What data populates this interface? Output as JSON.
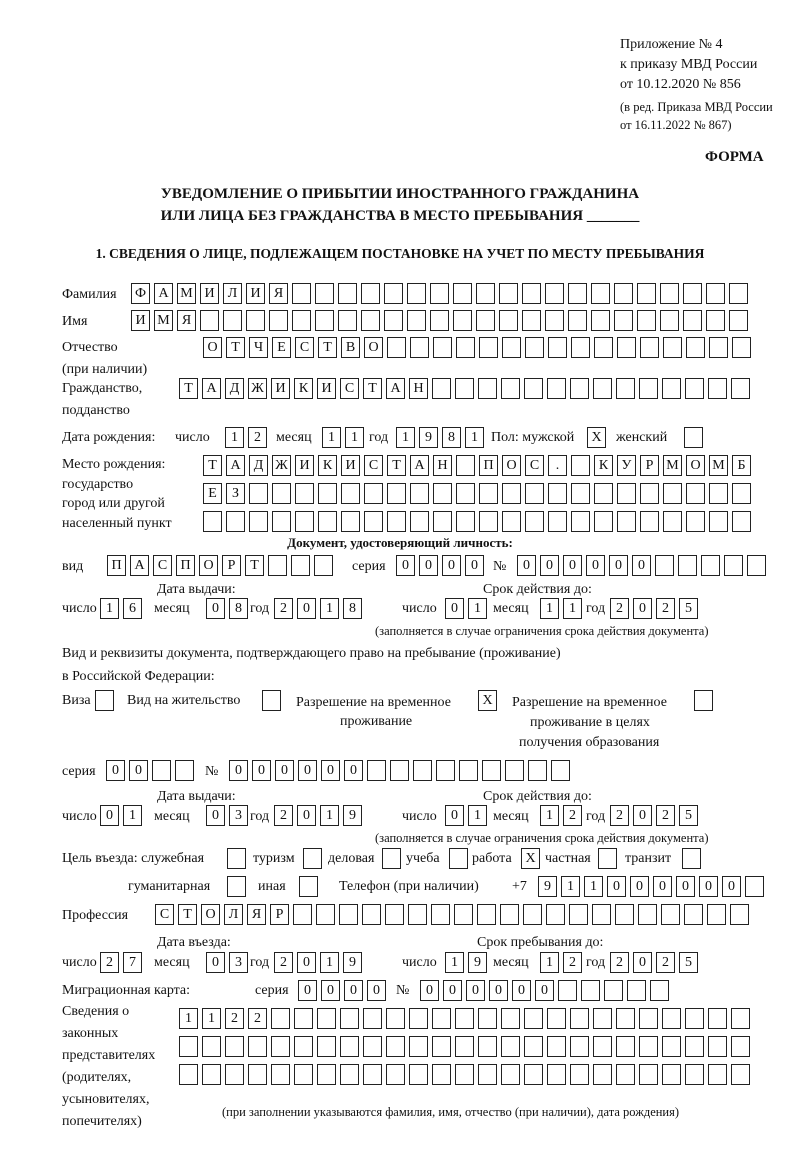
{
  "header": {
    "appendix": "Приложение № 4",
    "order": "к приказу МВД России",
    "order_date": "от 10.12.2020 № 856",
    "revision1": "(в ред. Приказа МВД России",
    "revision2": "от 16.11.2022 № 867)",
    "form": "ФОРМА",
    "title1": "УВЕДОМЛЕНИЕ О ПРИБЫТИИ ИНОСТРАННОГО ГРАЖДАНИНА",
    "title2": "ИЛИ ЛИЦА БЕЗ ГРАЖДАНСТВА В МЕСТО ПРЕБЫВАНИЯ _______",
    "section1": "1. СВЕДЕНИЯ О ЛИЦЕ, ПОДЛЕЖАЩЕМ ПОСТАНОВКЕ НА УЧЕТ ПО МЕСТУ ПРЕБЫВАНИЯ"
  },
  "labels": {
    "surname": "Фамилия",
    "name": "Имя",
    "patronymic1": "Отчество",
    "patronymic2": "(при наличии)",
    "citizenship1": "Гражданство,",
    "citizenship2": "подданство",
    "birth_date": "Дата рождения:",
    "day": "число",
    "month": "месяц",
    "year": "год",
    "sex": "Пол: мужской",
    "female": "женский",
    "birthplace1": "Место рождения:",
    "birthplace2": "государство",
    "birthplace3": "город или другой",
    "birthplace4": "населенный пункт",
    "id_doc": "Документ, удостоверяющий личность:",
    "kind": "вид",
    "series": "серия",
    "number": "№",
    "issue_date": "Дата выдачи:",
    "valid_until": "Срок действия до:",
    "valid_note": "(заполняется в случае ограничения срока действия документа)",
    "right_doc1": "Вид и реквизиты документа, подтверждающего право на пребывание (проживание)",
    "right_doc2": "в Российской Федерации:",
    "visa": "Виза",
    "residence": "Вид на жительство",
    "trp1": "Разрешение на временное",
    "trp2": "проживание",
    "trp_edu1": "Разрешение на временное",
    "trp_edu2": "проживание в целях",
    "trp_edu3": "получения образования",
    "purpose": "Цель въезда: служебная",
    "tourism": "туризм",
    "business": "деловая",
    "study": "учеба",
    "work": "работа",
    "private": "частная",
    "transit": "транзит",
    "humanitarian": "гуманитарная",
    "other": "иная",
    "phone": "Телефон (при наличии)",
    "phone_prefix": "+7",
    "profession": "Профессия",
    "entry_date": "Дата въезда:",
    "stay_until": "Срок пребывания до:",
    "migration_card": "Миграционная карта:",
    "reps1": "Сведения о",
    "reps2": "законных",
    "reps3": "представителях",
    "reps4": "(родителях,",
    "reps5": "усыновителях,",
    "reps6": "попечителях)",
    "reps_note": "(при заполнении указываются фамилия, имя, отчество (при наличии), дата рождения)"
  },
  "fields": {
    "surname": {
      "value": "ФАМИЛИЯ",
      "cells": 27
    },
    "name": {
      "value": "ИМЯ",
      "cells": 27
    },
    "patronymic": {
      "value": "ОТЧЕСТВО",
      "cells": 24
    },
    "citizenship": {
      "value": "ТАДЖИКИСТАН",
      "cells": 25
    },
    "birth_day": {
      "value": "12",
      "cells": 2
    },
    "birth_month": {
      "value": "11",
      "cells": 2
    },
    "birth_year": {
      "value": "1981",
      "cells": 4
    },
    "sex_male": {
      "value": "X",
      "cells": 1
    },
    "sex_female": {
      "value": "",
      "cells": 1
    },
    "birthplace_1": {
      "value": "ТАДЖИКИСТАН ПОС. КУРМОМБ",
      "cells": 24
    },
    "birthplace_2": {
      "value": "ЕЗ",
      "cells": 24
    },
    "birthplace_3": {
      "value": "",
      "cells": 24
    },
    "id_kind": {
      "value": "ПАСПОРТ",
      "cells": 10
    },
    "id_series": {
      "value": "0000",
      "cells": 4
    },
    "id_number": {
      "value": "000000",
      "cells": 11
    },
    "id_issue_day": {
      "value": "16",
      "cells": 2
    },
    "id_issue_month": {
      "value": "08",
      "cells": 2
    },
    "id_issue_year": {
      "value": "2018",
      "cells": 4
    },
    "id_valid_day": {
      "value": "01",
      "cells": 2
    },
    "id_valid_month": {
      "value": "11",
      "cells": 2
    },
    "id_valid_year": {
      "value": "2025",
      "cells": 4
    },
    "visa": {
      "value": "",
      "cells": 1
    },
    "residence": {
      "value": "",
      "cells": 1
    },
    "trp": {
      "value": "X",
      "cells": 1
    },
    "trp_edu": {
      "value": "",
      "cells": 1
    },
    "rd_series": {
      "value": "00",
      "cells": 4
    },
    "rd_number": {
      "value": "000000",
      "cells": 15
    },
    "rd_issue_day": {
      "value": "01",
      "cells": 2
    },
    "rd_issue_month": {
      "value": "03",
      "cells": 2
    },
    "rd_issue_year": {
      "value": "2019",
      "cells": 4
    },
    "rd_valid_day": {
      "value": "01",
      "cells": 2
    },
    "rd_valid_month": {
      "value": "12",
      "cells": 2
    },
    "rd_valid_year": {
      "value": "2025",
      "cells": 4
    },
    "p_official": {
      "value": "",
      "cells": 1
    },
    "p_tourism": {
      "value": "",
      "cells": 1
    },
    "p_business": {
      "value": "",
      "cells": 1
    },
    "p_study": {
      "value": "",
      "cells": 1
    },
    "p_work": {
      "value": "X",
      "cells": 1
    },
    "p_private": {
      "value": "",
      "cells": 1
    },
    "p_transit": {
      "value": "",
      "cells": 1
    },
    "p_humanitarian": {
      "value": "",
      "cells": 1
    },
    "p_other": {
      "value": "",
      "cells": 1
    },
    "phone": {
      "value": "911000000",
      "cells": 10
    },
    "profession": {
      "value": "СТОЛЯР",
      "cells": 26
    },
    "entry_day": {
      "value": "27",
      "cells": 2
    },
    "entry_month": {
      "value": "03",
      "cells": 2
    },
    "entry_year": {
      "value": "2019",
      "cells": 4
    },
    "stay_day": {
      "value": "19",
      "cells": 2
    },
    "stay_month": {
      "value": "12",
      "cells": 2
    },
    "stay_year": {
      "value": "2025",
      "cells": 4
    },
    "mc_series": {
      "value": "0000",
      "cells": 4
    },
    "mc_number": {
      "value": "000000",
      "cells": 11
    },
    "reps_1": {
      "value": "1122",
      "cells": 25
    },
    "reps_2": {
      "value": "",
      "cells": 25
    },
    "reps_3": {
      "value": "",
      "cells": 25
    }
  }
}
